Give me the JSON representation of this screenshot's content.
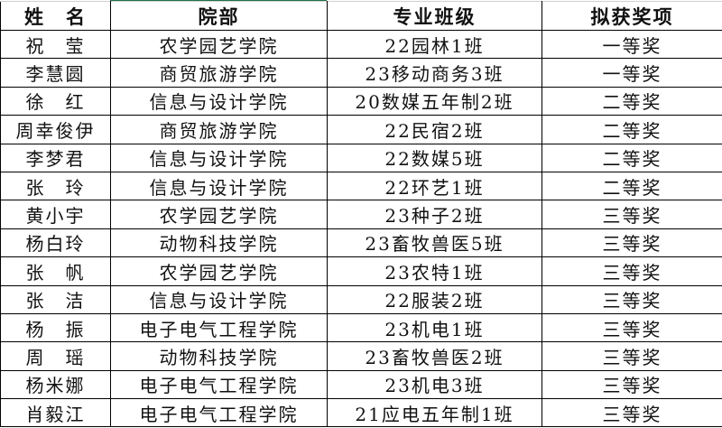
{
  "headers": [
    "姓　名",
    "院部",
    "专业班级",
    "拟获奖项"
  ],
  "rows": [
    [
      "祝　莹",
      "农学园艺学院",
      "22园林1班",
      "一等奖"
    ],
    [
      "李慧圆",
      "商贸旅游学院",
      "23移动商务3班",
      "一等奖"
    ],
    [
      "徐　红",
      "信息与设计学院",
      "20数媒五年制2班",
      "二等奖"
    ],
    [
      "周幸俊伊",
      "商贸旅游学院",
      "22民宿2班",
      "二等奖"
    ],
    [
      "李梦君",
      "信息与设计学院",
      "22数媒5班",
      "二等奖"
    ],
    [
      "张　玲",
      "信息与设计学院",
      "22环艺1班",
      "二等奖"
    ],
    [
      "黄小宇",
      "农学园艺学院",
      "23种子2班",
      "三等奖"
    ],
    [
      "杨白玲",
      "动物科技学院",
      "23畜牧兽医5班",
      "三等奖"
    ],
    [
      "张　帆",
      "农学园艺学院",
      "23农特1班",
      "三等奖"
    ],
    [
      "张　洁",
      "信息与设计学院",
      "22服装2班",
      "三等奖"
    ],
    [
      "杨　振",
      "电子电气工程学院",
      "23机电1班",
      "三等奖"
    ],
    [
      "周　瑶",
      "动物科技学院",
      "23畜牧兽医2班",
      "三等奖"
    ],
    [
      "杨米娜",
      "电子电气工程学院",
      "23机电3班",
      "三等奖"
    ],
    [
      "肖毅江",
      "电子电气工程学院",
      "21应电五年制1班",
      "三等奖"
    ]
  ],
  "colors": {
    "selection_accent": "#217346"
  }
}
